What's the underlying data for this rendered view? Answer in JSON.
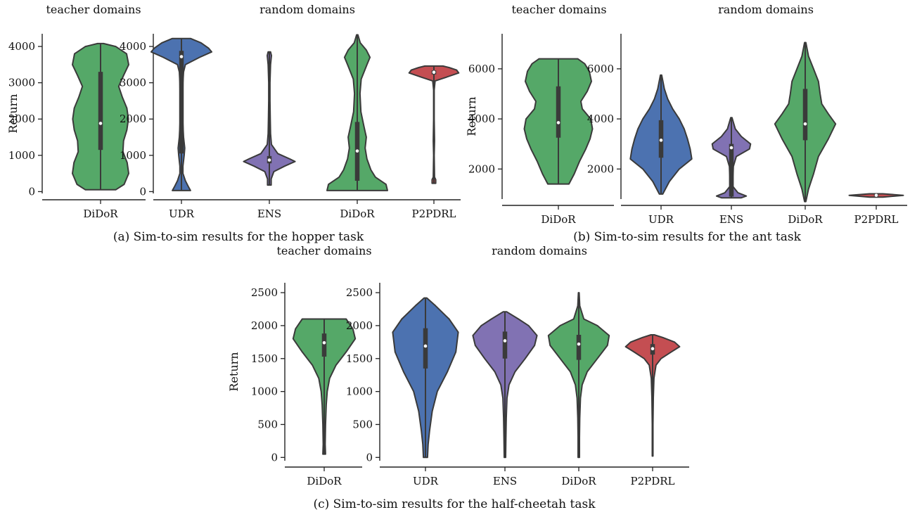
{
  "figure": {
    "captions": [
      "(a) Sim-to-sim results for the hopper task",
      "(b) Sim-to-sim results for the ant task",
      "(c) Sim-to-sim results for the half-cheetah task"
    ]
  },
  "colors": {
    "UDR": "#4c72b0",
    "ENS": "#8172b3",
    "DiDoR": "#55a868",
    "P2PDRL": "#c44e52"
  },
  "chart_data": [
    {
      "type": "violin",
      "panel": "teacher domains",
      "subfigure": "a",
      "ylabel": "Return",
      "ylim": [
        -50,
        4350
      ],
      "yticks": [
        0,
        1000,
        2000,
        3000,
        4000
      ],
      "categories": [
        "DiDoR"
      ],
      "series": [
        {
          "category": "DiDoR",
          "min": 50,
          "q1": 1150,
          "median": 1880,
          "q3": 3300,
          "max": 4080,
          "profile": [
            [
              50,
              0.5
            ],
            [
              200,
              0.78
            ],
            [
              500,
              0.93
            ],
            [
              800,
              0.88
            ],
            [
              1100,
              0.74
            ],
            [
              1400,
              0.76
            ],
            [
              1700,
              0.87
            ],
            [
              2000,
              0.92
            ],
            [
              2300,
              0.87
            ],
            [
              2600,
              0.72
            ],
            [
              2900,
              0.6
            ],
            [
              3200,
              0.76
            ],
            [
              3500,
              0.93
            ],
            [
              3800,
              0.86
            ],
            [
              4000,
              0.5
            ],
            [
              4080,
              0.1
            ]
          ]
        }
      ]
    },
    {
      "type": "violin",
      "panel": "random domains",
      "subfigure": "a",
      "ylabel": "",
      "ylim": [
        -50,
        4350
      ],
      "yticks": [
        0,
        1000,
        2000,
        3000,
        4000
      ],
      "categories": [
        "UDR",
        "ENS",
        "DiDoR",
        "P2PDRL"
      ],
      "series": [
        {
          "category": "UDR",
          "min": 30,
          "q1": 1050,
          "median": 3720,
          "q3": 3880,
          "max": 4220,
          "profile": [
            [
              30,
              0.3
            ],
            [
              150,
              0.22
            ],
            [
              300,
              0.13
            ],
            [
              500,
              0.05
            ],
            [
              700,
              0.05
            ],
            [
              1000,
              0.09
            ],
            [
              1200,
              0.11
            ],
            [
              1500,
              0.07
            ],
            [
              2000,
              0.04
            ],
            [
              2500,
              0.04
            ],
            [
              3000,
              0.05
            ],
            [
              3300,
              0.07
            ],
            [
              3500,
              0.13
            ],
            [
              3700,
              0.6
            ],
            [
              3850,
              1.0
            ],
            [
              3950,
              0.9
            ],
            [
              4100,
              0.65
            ],
            [
              4220,
              0.3
            ]
          ]
        },
        {
          "category": "ENS",
          "min": 180,
          "q1": 780,
          "median": 870,
          "q3": 980,
          "max": 3850,
          "profile": [
            [
              180,
              0.06
            ],
            [
              350,
              0.06
            ],
            [
              550,
              0.15
            ],
            [
              700,
              0.5
            ],
            [
              830,
              0.85
            ],
            [
              900,
              0.68
            ],
            [
              1050,
              0.28
            ],
            [
              1300,
              0.07
            ],
            [
              1600,
              0.04
            ],
            [
              2000,
              0.03
            ],
            [
              2500,
              0.02
            ],
            [
              3000,
              0.02
            ],
            [
              3500,
              0.04
            ],
            [
              3750,
              0.07
            ],
            [
              3850,
              0.04
            ]
          ]
        },
        {
          "category": "DiDoR",
          "min": 30,
          "q1": 300,
          "median": 1120,
          "q3": 1920,
          "max": 4320,
          "profile": [
            [
              30,
              1.0
            ],
            [
              200,
              0.95
            ],
            [
              400,
              0.6
            ],
            [
              600,
              0.45
            ],
            [
              900,
              0.32
            ],
            [
              1200,
              0.26
            ],
            [
              1500,
              0.3
            ],
            [
              1800,
              0.22
            ],
            [
              2200,
              0.12
            ],
            [
              2700,
              0.09
            ],
            [
              3100,
              0.13
            ],
            [
              3500,
              0.32
            ],
            [
              3700,
              0.42
            ],
            [
              3900,
              0.3
            ],
            [
              4100,
              0.1
            ],
            [
              4320,
              0.02
            ]
          ]
        },
        {
          "category": "P2PDRL",
          "min": 230,
          "q1": 3230,
          "median": 3290,
          "q3": 3340,
          "max": 3460,
          "profile": [
            [
              230,
              0.06
            ],
            [
              330,
              0.06
            ],
            [
              400,
              0.02
            ],
            [
              1000,
              0.01
            ],
            [
              1400,
              0.02
            ],
            [
              2000,
              0.01
            ],
            [
              2800,
              0.01
            ],
            [
              3050,
              0.04
            ],
            [
              3150,
              0.4
            ],
            [
              3270,
              0.82
            ],
            [
              3350,
              0.75
            ],
            [
              3420,
              0.5
            ],
            [
              3460,
              0.3
            ]
          ]
        }
      ]
    },
    {
      "type": "violin",
      "panel": "teacher domains",
      "subfigure": "b",
      "ylabel": "Return",
      "ylim": [
        800,
        7400
      ],
      "yticks": [
        2000,
        4000,
        6000
      ],
      "categories": [
        "DiDoR"
      ],
      "series": [
        {
          "category": "DiDoR",
          "min": 1400,
          "q1": 3250,
          "median": 3850,
          "q3": 5300,
          "max": 6400,
          "profile": [
            [
              1400,
              0.3
            ],
            [
              1800,
              0.45
            ],
            [
              2300,
              0.6
            ],
            [
              2800,
              0.78
            ],
            [
              3200,
              0.9
            ],
            [
              3600,
              0.97
            ],
            [
              4000,
              0.92
            ],
            [
              4400,
              0.68
            ],
            [
              4700,
              0.64
            ],
            [
              5100,
              0.82
            ],
            [
              5500,
              0.94
            ],
            [
              5900,
              0.88
            ],
            [
              6200,
              0.75
            ],
            [
              6400,
              0.55
            ]
          ]
        }
      ]
    },
    {
      "type": "violin",
      "panel": "random domains",
      "subfigure": "b",
      "ylabel": "",
      "ylim": [
        800,
        7400
      ],
      "yticks": [
        2000,
        4000,
        6000
      ],
      "categories": [
        "UDR",
        "ENS",
        "DiDoR",
        "P2PDRL"
      ],
      "series": [
        {
          "category": "UDR",
          "min": 1000,
          "q1": 2450,
          "median": 3150,
          "q3": 3950,
          "max": 5750,
          "profile": [
            [
              1000,
              0.05
            ],
            [
              1500,
              0.25
            ],
            [
              2000,
              0.55
            ],
            [
              2400,
              0.93
            ],
            [
              2800,
              0.88
            ],
            [
              3200,
              0.8
            ],
            [
              3600,
              0.7
            ],
            [
              4000,
              0.55
            ],
            [
              4400,
              0.35
            ],
            [
              4800,
              0.2
            ],
            [
              5200,
              0.1
            ],
            [
              5750,
              0.02
            ]
          ]
        },
        {
          "category": "ENS",
          "min": 850,
          "q1": 900,
          "median": 2850,
          "q3": 3000,
          "max": 4050,
          "profile": [
            [
              850,
              0.3
            ],
            [
              920,
              0.45
            ],
            [
              1050,
              0.2
            ],
            [
              1300,
              0.05
            ],
            [
              1700,
              0.05
            ],
            [
              2100,
              0.06
            ],
            [
              2500,
              0.15
            ],
            [
              2800,
              0.55
            ],
            [
              3000,
              0.58
            ],
            [
              3300,
              0.3
            ],
            [
              3600,
              0.12
            ],
            [
              4050,
              0.02
            ]
          ]
        },
        {
          "category": "DiDoR",
          "min": 700,
          "q1": 3150,
          "median": 3800,
          "q3": 5200,
          "max": 7050,
          "profile": [
            [
              700,
              0.02
            ],
            [
              1200,
              0.1
            ],
            [
              1800,
              0.25
            ],
            [
              2500,
              0.4
            ],
            [
              3200,
              0.7
            ],
            [
              3800,
              0.92
            ],
            [
              4200,
              0.7
            ],
            [
              4600,
              0.5
            ],
            [
              5000,
              0.45
            ],
            [
              5500,
              0.4
            ],
            [
              6000,
              0.25
            ],
            [
              6500,
              0.1
            ],
            [
              7050,
              0.02
            ]
          ]
        },
        {
          "category": "P2PDRL",
          "min": 880,
          "q1": 920,
          "median": 950,
          "q3": 980,
          "max": 1010,
          "profile": [
            [
              880,
              0.2
            ],
            [
              950,
              0.82
            ],
            [
              1010,
              0.2
            ]
          ]
        }
      ]
    },
    {
      "type": "violin",
      "panel": "teacher domains",
      "subfigure": "c",
      "ylabel": "Return",
      "ylim": [
        -50,
        2650
      ],
      "yticks": [
        0,
        500,
        1000,
        1500,
        2000,
        2500
      ],
      "categories": [
        "DiDoR"
      ],
      "series": [
        {
          "category": "DiDoR",
          "min": 50,
          "q1": 1530,
          "median": 1740,
          "q3": 1880,
          "max": 2100,
          "profile": [
            [
              50,
              0.04
            ],
            [
              200,
              0.03
            ],
            [
              500,
              0.04
            ],
            [
              800,
              0.06
            ],
            [
              1000,
              0.09
            ],
            [
              1200,
              0.16
            ],
            [
              1400,
              0.35
            ],
            [
              1600,
              0.65
            ],
            [
              1800,
              0.92
            ],
            [
              1950,
              0.85
            ],
            [
              2100,
              0.65
            ]
          ]
        }
      ]
    },
    {
      "type": "violin",
      "panel": "random domains",
      "subfigure": "c",
      "ylabel": "",
      "ylim": [
        -50,
        2650
      ],
      "yticks": [
        0,
        500,
        1000,
        1500,
        2000,
        2500
      ],
      "categories": [
        "UDR",
        "ENS",
        "DiDoR",
        "P2PDRL"
      ],
      "series": [
        {
          "category": "UDR",
          "min": 0,
          "q1": 1350,
          "median": 1690,
          "q3": 1960,
          "max": 2420,
          "profile": [
            [
              0,
              0.06
            ],
            [
              200,
              0.08
            ],
            [
              400,
              0.12
            ],
            [
              700,
              0.2
            ],
            [
              1000,
              0.35
            ],
            [
              1300,
              0.65
            ],
            [
              1600,
              0.9
            ],
            [
              1900,
              0.97
            ],
            [
              2100,
              0.7
            ],
            [
              2300,
              0.3
            ],
            [
              2420,
              0.04
            ]
          ]
        },
        {
          "category": "ENS",
          "min": 0,
          "q1": 1500,
          "median": 1770,
          "q3": 1910,
          "max": 2210,
          "profile": [
            [
              0,
              0.02
            ],
            [
              300,
              0.03
            ],
            [
              600,
              0.04
            ],
            [
              900,
              0.06
            ],
            [
              1100,
              0.12
            ],
            [
              1300,
              0.3
            ],
            [
              1500,
              0.6
            ],
            [
              1700,
              0.88
            ],
            [
              1850,
              0.95
            ],
            [
              2000,
              0.7
            ],
            [
              2100,
              0.4
            ],
            [
              2210,
              0.05
            ]
          ]
        },
        {
          "category": "DiDoR",
          "min": 0,
          "q1": 1480,
          "median": 1720,
          "q3": 1860,
          "max": 2500,
          "profile": [
            [
              0,
              0.02
            ],
            [
              300,
              0.02
            ],
            [
              600,
              0.03
            ],
            [
              900,
              0.05
            ],
            [
              1100,
              0.1
            ],
            [
              1300,
              0.25
            ],
            [
              1500,
              0.55
            ],
            [
              1700,
              0.85
            ],
            [
              1850,
              0.9
            ],
            [
              2000,
              0.55
            ],
            [
              2100,
              0.15
            ],
            [
              2300,
              0.03
            ],
            [
              2500,
              0.01
            ]
          ]
        },
        {
          "category": "P2PDRL",
          "min": 20,
          "q1": 1560,
          "median": 1650,
          "q3": 1720,
          "max": 1860,
          "profile": [
            [
              20,
              0.01
            ],
            [
              500,
              0.01
            ],
            [
              900,
              0.02
            ],
            [
              1200,
              0.04
            ],
            [
              1400,
              0.1
            ],
            [
              1500,
              0.25
            ],
            [
              1600,
              0.55
            ],
            [
              1680,
              0.8
            ],
            [
              1750,
              0.65
            ],
            [
              1820,
              0.3
            ],
            [
              1860,
              0.05
            ]
          ]
        }
      ]
    }
  ]
}
